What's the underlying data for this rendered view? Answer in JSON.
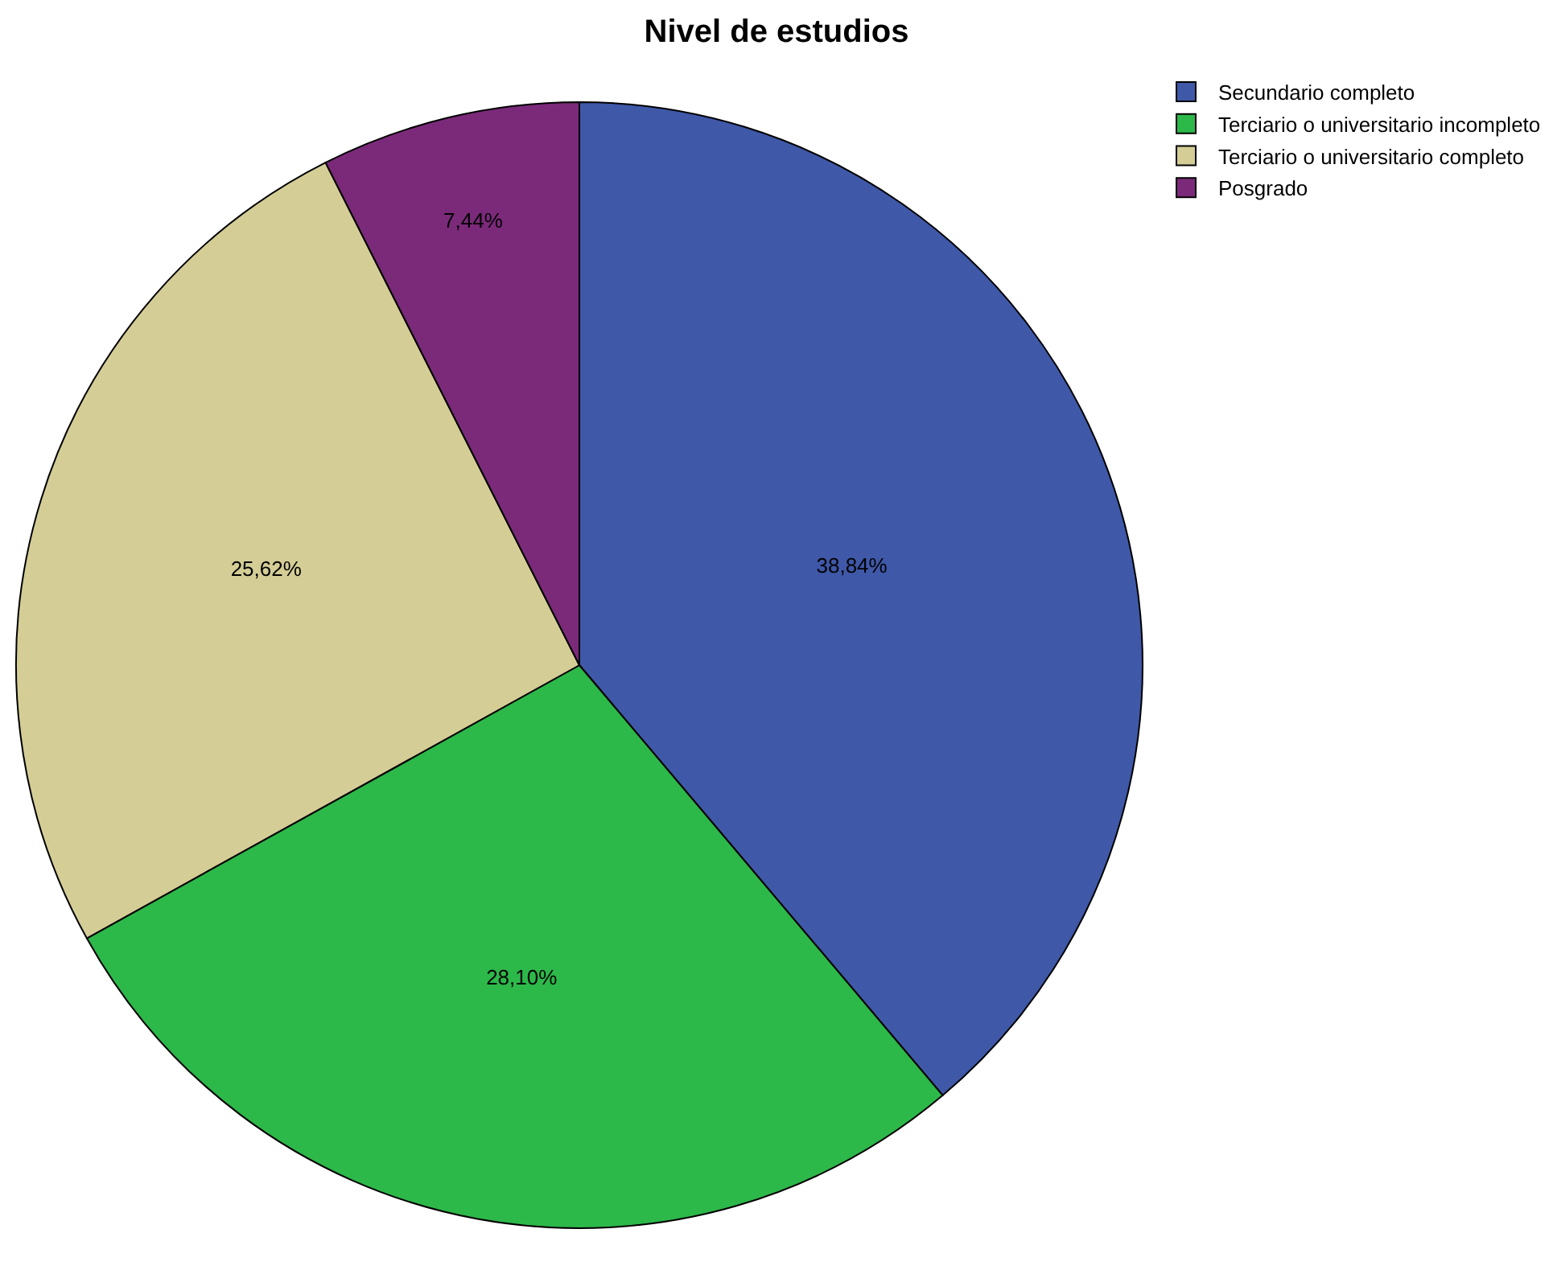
{
  "chart_data": {
    "type": "pie",
    "title": "Nivel de estudios",
    "categories": [
      "Secundario completo",
      "Terciario o universitario incompleto",
      "Terciario o universitario completo",
      "Posgrado"
    ],
    "values": [
      38.84,
      28.1,
      25.62,
      7.44
    ],
    "colors": [
      "#3f58a8",
      "#2db84a",
      "#d4cd96",
      "#7b2a7a"
    ],
    "value_labels": [
      "38,84%",
      "28,10%",
      "25,62%",
      "7,44%"
    ],
    "legend": "top right"
  }
}
